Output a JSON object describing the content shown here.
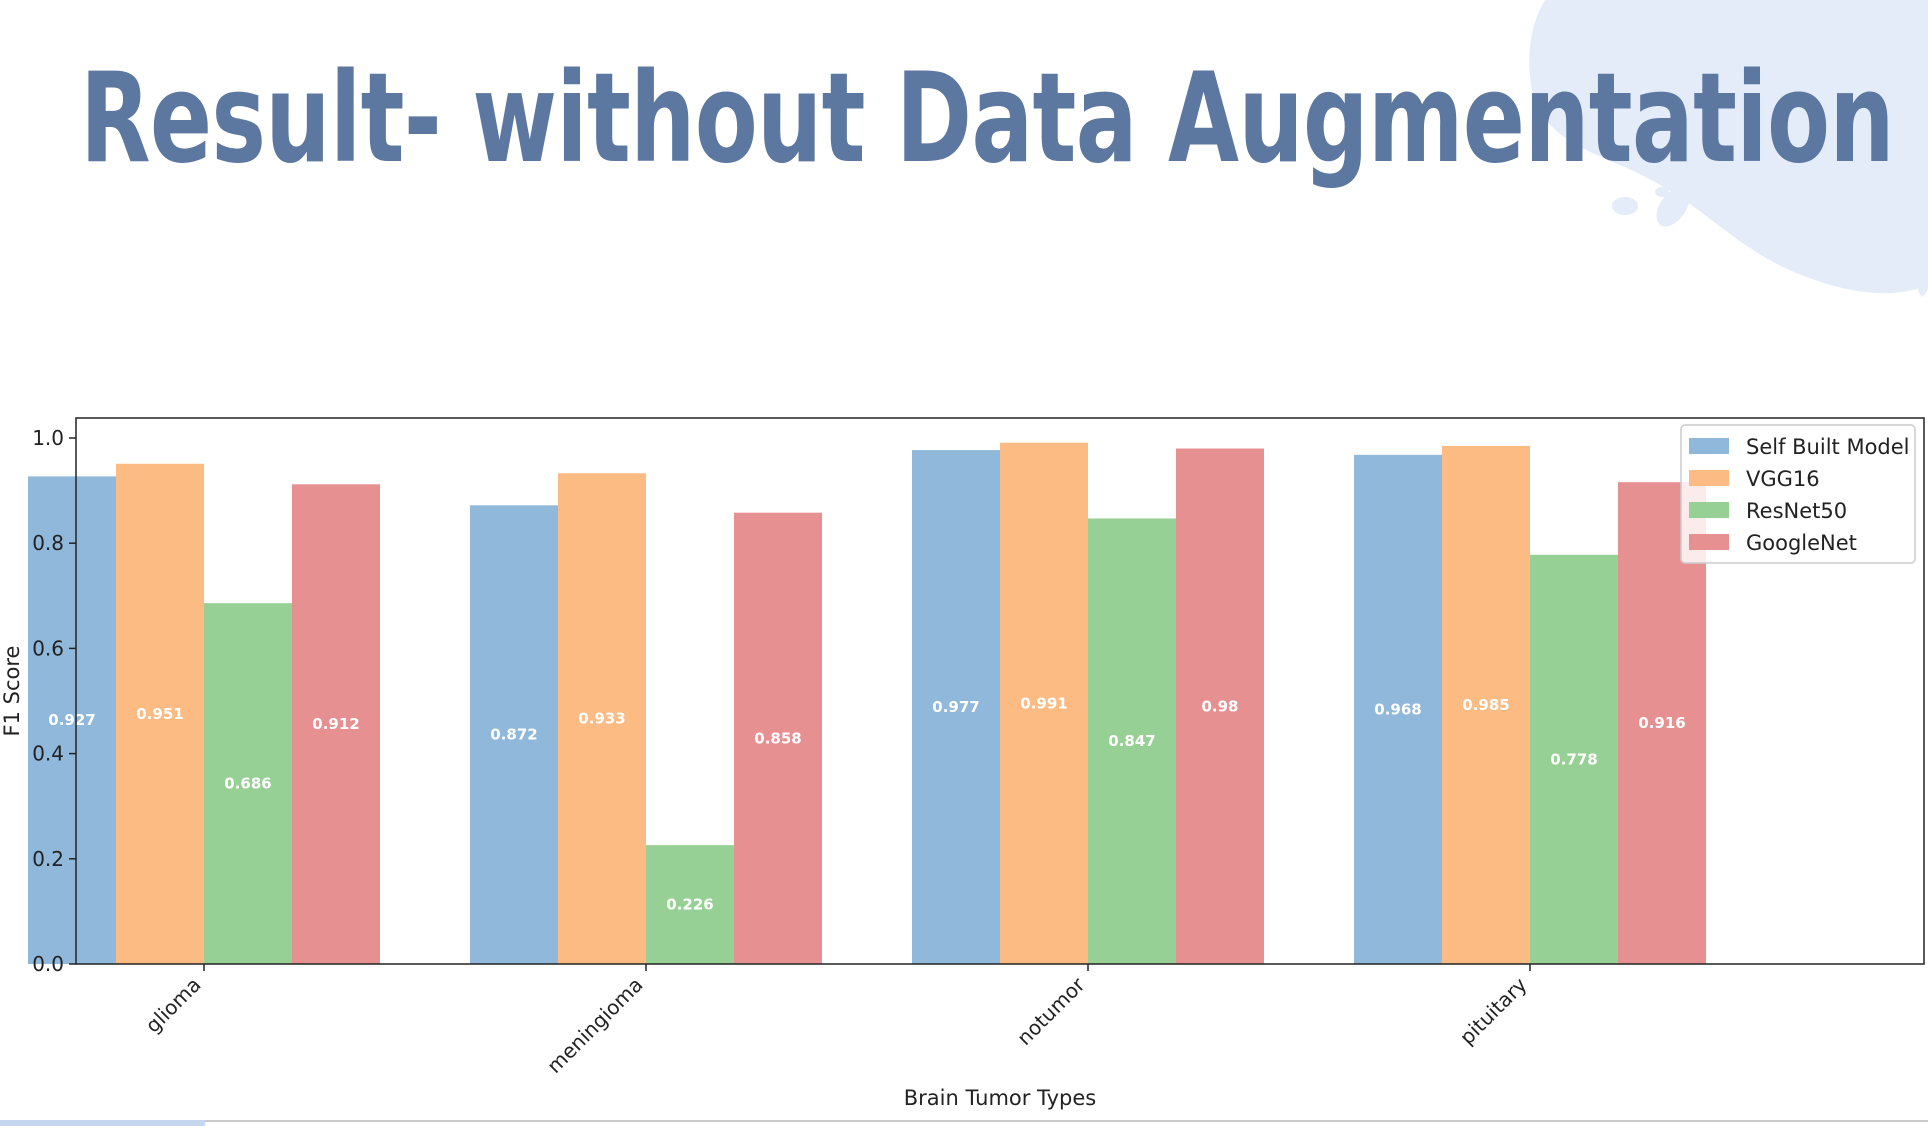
{
  "slide": {
    "title": "Result- without Data Augmentation"
  },
  "colors": {
    "title": "#5c77a0",
    "blob": "#e3ecf8",
    "series": [
      "#8fb8da",
      "#fdbb84",
      "#96d094",
      "#e79092"
    ]
  },
  "chart_data": {
    "type": "bar",
    "categories": [
      "glioma",
      "meningioma",
      "notumor",
      "pituitary"
    ],
    "series": [
      {
        "name": "Self Built Model",
        "values": [
          0.927,
          0.872,
          0.977,
          0.968
        ]
      },
      {
        "name": "VGG16",
        "values": [
          0.951,
          0.933,
          0.991,
          0.985
        ]
      },
      {
        "name": "ResNet50",
        "values": [
          0.686,
          0.226,
          0.847,
          0.778
        ]
      },
      {
        "name": "GoogleNet",
        "values": [
          0.912,
          0.858,
          0.98,
          0.916
        ]
      }
    ],
    "xlabel": "Brain Tumor Types",
    "ylabel": "F1 Score",
    "ylim": [
      0,
      1.0
    ],
    "yticks": [
      "0.0",
      "0.2",
      "0.4",
      "0.6",
      "0.8",
      "1.0"
    ],
    "legend_position": "top-right",
    "grid": false
  }
}
